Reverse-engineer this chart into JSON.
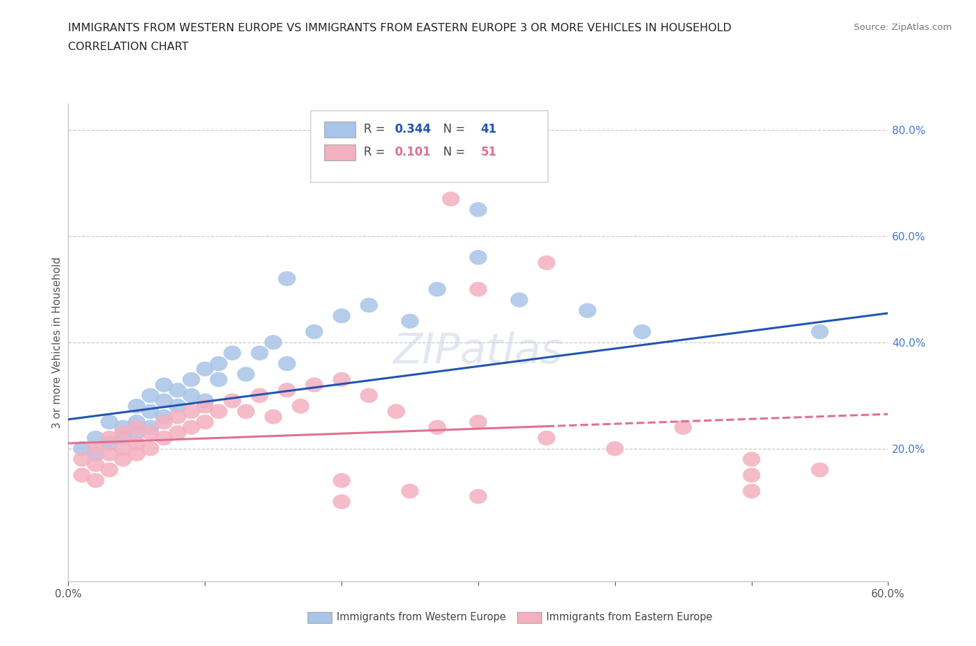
{
  "title_line1": "IMMIGRANTS FROM WESTERN EUROPE VS IMMIGRANTS FROM EASTERN EUROPE 3 OR MORE VEHICLES IN HOUSEHOLD",
  "title_line2": "CORRELATION CHART",
  "source": "Source: ZipAtlas.com",
  "ylabel": "3 or more Vehicles in Household",
  "xlim": [
    0.0,
    0.6
  ],
  "ylim": [
    -0.05,
    0.85
  ],
  "xticks": [
    0.0,
    0.1,
    0.2,
    0.3,
    0.4,
    0.5,
    0.6
  ],
  "xticklabels": [
    "0.0%",
    "",
    "",
    "",
    "",
    "",
    "60.0%"
  ],
  "yticks_right": [
    0.2,
    0.4,
    0.6,
    0.8
  ],
  "ytick_right_labels": [
    "20.0%",
    "40.0%",
    "60.0%",
    "80.0%"
  ],
  "blue_R": 0.344,
  "blue_N": 41,
  "pink_R": 0.101,
  "pink_N": 51,
  "blue_color": "#a8c4e8",
  "pink_color": "#f4afc0",
  "blue_line_color": "#2255b0",
  "pink_line_color": "#e07090",
  "legend_label_blue": "Immigrants from Western Europe",
  "legend_label_pink": "Immigrants from Eastern Europe",
  "watermark": "ZIPatlas",
  "blue_scatter_x": [
    0.01,
    0.02,
    0.02,
    0.03,
    0.03,
    0.04,
    0.04,
    0.05,
    0.05,
    0.05,
    0.06,
    0.06,
    0.06,
    0.07,
    0.07,
    0.07,
    0.08,
    0.08,
    0.09,
    0.09,
    0.1,
    0.1,
    0.11,
    0.11,
    0.12,
    0.13,
    0.14,
    0.15,
    0.16,
    0.18,
    0.2,
    0.22,
    0.25,
    0.27,
    0.3,
    0.33,
    0.38,
    0.42,
    0.55,
    0.3,
    0.16
  ],
  "blue_scatter_y": [
    0.2,
    0.22,
    0.19,
    0.25,
    0.21,
    0.24,
    0.22,
    0.28,
    0.25,
    0.23,
    0.27,
    0.24,
    0.3,
    0.29,
    0.26,
    0.32,
    0.28,
    0.31,
    0.33,
    0.3,
    0.35,
    0.29,
    0.36,
    0.33,
    0.38,
    0.34,
    0.38,
    0.4,
    0.36,
    0.42,
    0.45,
    0.47,
    0.44,
    0.5,
    0.56,
    0.48,
    0.46,
    0.42,
    0.42,
    0.65,
    0.52
  ],
  "pink_scatter_x": [
    0.01,
    0.01,
    0.02,
    0.02,
    0.02,
    0.03,
    0.03,
    0.03,
    0.04,
    0.04,
    0.04,
    0.05,
    0.05,
    0.05,
    0.06,
    0.06,
    0.07,
    0.07,
    0.08,
    0.08,
    0.09,
    0.09,
    0.1,
    0.1,
    0.11,
    0.12,
    0.13,
    0.14,
    0.15,
    0.16,
    0.17,
    0.18,
    0.2,
    0.22,
    0.24,
    0.27,
    0.28,
    0.3,
    0.35,
    0.4,
    0.45,
    0.5,
    0.5,
    0.55,
    0.3,
    0.2,
    0.35,
    0.25,
    0.2,
    0.3,
    0.5
  ],
  "pink_scatter_y": [
    0.18,
    0.15,
    0.2,
    0.17,
    0.14,
    0.22,
    0.19,
    0.16,
    0.23,
    0.2,
    0.18,
    0.24,
    0.21,
    0.19,
    0.23,
    0.2,
    0.25,
    0.22,
    0.26,
    0.23,
    0.27,
    0.24,
    0.28,
    0.25,
    0.27,
    0.29,
    0.27,
    0.3,
    0.26,
    0.31,
    0.28,
    0.32,
    0.33,
    0.3,
    0.27,
    0.24,
    0.67,
    0.25,
    0.22,
    0.2,
    0.24,
    0.18,
    0.15,
    0.16,
    0.5,
    0.14,
    0.55,
    0.12,
    0.1,
    0.11,
    0.12
  ],
  "background_color": "#ffffff",
  "grid_color": "#cccccc",
  "fig_width": 14.06,
  "fig_height": 9.3
}
